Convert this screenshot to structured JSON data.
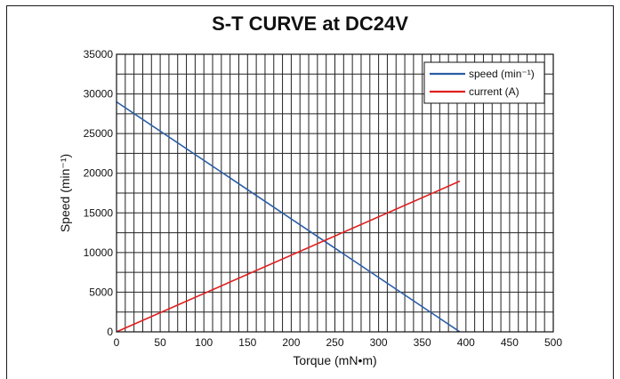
{
  "chart_data": {
    "type": "line",
    "title": "S-T CURVE at DC24V",
    "xlabel": "Torque (mN•m)",
    "ylabel": "Speed (min⁻¹)",
    "xlim": [
      0,
      500
    ],
    "ylim": [
      0,
      35000
    ],
    "xticks": [
      "0",
      "50",
      "100",
      "150",
      "200",
      "250",
      "300",
      "350",
      "400",
      "450",
      "500"
    ],
    "yticks": [
      "0",
      "5000",
      "10000",
      "15000",
      "20000",
      "25000",
      "30000",
      "35000"
    ],
    "grid": true,
    "legend_position": "top-right",
    "series": [
      {
        "name": "speed (min⁻¹)",
        "color": "#2b5ea7",
        "x": [
          0,
          393
        ],
        "y": [
          29000,
          0
        ]
      },
      {
        "name": "current (A)",
        "color": "#e02020",
        "x": [
          0,
          393
        ],
        "y": [
          0,
          19000
        ]
      }
    ]
  }
}
